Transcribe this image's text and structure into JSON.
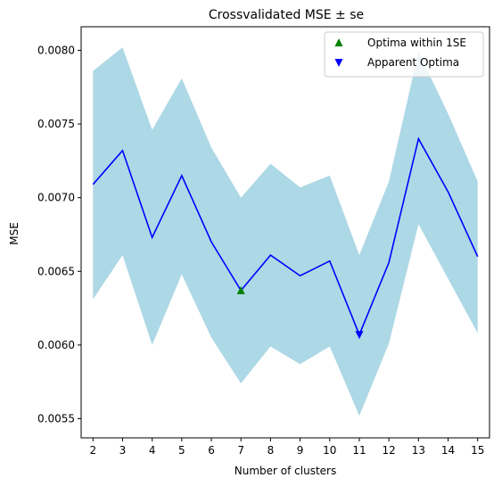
{
  "chart_data": {
    "type": "line",
    "title": "Crossvalidated MSE ± se",
    "xlabel": "Number of clusters",
    "ylabel": "MSE",
    "x": [
      2,
      3,
      4,
      5,
      6,
      7,
      8,
      9,
      10,
      11,
      12,
      13,
      14,
      15
    ],
    "xlim": [
      1.6,
      15.4
    ],
    "ylim": [
      0.00537,
      0.00816
    ],
    "yticks": [
      "0.0055",
      "0.0060",
      "0.0065",
      "0.0070",
      "0.0075",
      "0.0080"
    ],
    "ytick_values": [
      0.0055,
      0.006,
      0.0065,
      0.007,
      0.0075,
      0.008
    ],
    "series": [
      {
        "name": "mean",
        "values": [
          0.00709,
          0.00732,
          0.00673,
          0.00715,
          0.0067,
          0.00637,
          0.00661,
          0.00647,
          0.00657,
          0.00607,
          0.00656,
          0.0074,
          0.00704,
          0.0066
        ],
        "color": "#0000ff"
      }
    ],
    "band": {
      "upper": [
        0.00786,
        0.00802,
        0.00746,
        0.00781,
        0.00734,
        0.007,
        0.00723,
        0.00707,
        0.00715,
        0.00661,
        0.00711,
        0.00799,
        0.00757,
        0.00711
      ],
      "lower": [
        0.00631,
        0.00661,
        0.006,
        0.00648,
        0.00605,
        0.00574,
        0.00599,
        0.00587,
        0.00599,
        0.00552,
        0.00601,
        0.00682,
        0.00645,
        0.00608
      ],
      "color": "#add8e6"
    },
    "markers": [
      {
        "label": "Optima within 1SE",
        "x": 7,
        "y": 0.00637,
        "shape": "triangle-up",
        "color": "#008000"
      },
      {
        "label": "Apparent Optima",
        "x": 11,
        "y": 0.00607,
        "shape": "triangle-down",
        "color": "#0000ff"
      }
    ],
    "legend": "top-right",
    "grid": false
  }
}
